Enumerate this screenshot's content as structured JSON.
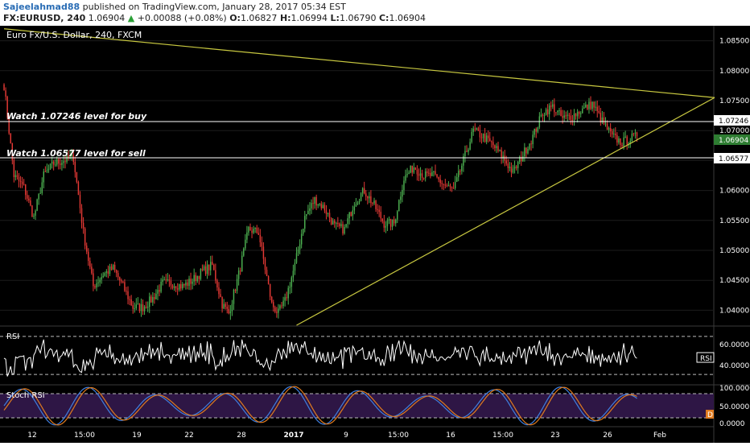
{
  "header": {
    "author": "Sajeelahmad88",
    "published_text": "published on TradingView.com, January 28, 2017 05:34 EST",
    "symbol": "FX:EURUSD, 240",
    "last": "1.06904",
    "change_arrow": "▲",
    "change": "+0.00088 (+0.08%)",
    "o_label": "O:",
    "o_value": "1.06827",
    "h_label": "H:",
    "h_value": "1.06994",
    "l_label": "L:",
    "l_value": "1.06790",
    "c_label": "C:",
    "c_value": "1.06904"
  },
  "chart": {
    "title": "Euro Fx/U.S. Dollar, 240, FXCM",
    "annotation_buy": "Watch 1.07246 level for buy",
    "annotation_sell": "Watch 1.06577 level for sell",
    "price_ticks": [
      "1.08500",
      "1.08000",
      "1.07500",
      "1.07000",
      "1.06500",
      "1.06000",
      "1.05500",
      "1.05000",
      "1.04500",
      "1.04000"
    ],
    "tag_buy": "1.07246",
    "tag_last": "1.06904",
    "tag_sell": "1.06577",
    "x_ticks": [
      "12",
      "15:00",
      "19",
      "22",
      "28",
      "2017",
      "9",
      "15:00",
      "16",
      "15:00",
      "23",
      "26",
      "Feb"
    ],
    "rsi_label": "RSI",
    "rsi_tag": "RSI",
    "rsi_ticks": [
      "60.0000",
      "40.0000"
    ],
    "stoch_label": "Stoch RSI",
    "stoch_ticks": [
      "100.0000",
      "50.0000",
      "0.0000"
    ],
    "stoch_tag": "D"
  },
  "colors": {
    "background": "#000000",
    "up_candle": "#4caf50",
    "down_candle": "#e53935",
    "trendline": "#c8c840",
    "level_line": "#ffffff",
    "rsi_line": "#ffffff",
    "stoch_band": "#2e1645",
    "stoch_k": "#3f7fe0",
    "stoch_d": "#e07b1f"
  },
  "chart_data": {
    "type": "candlestick",
    "title": "Euro Fx/U.S. Dollar, 240, FXCM",
    "ylim": [
      1.0375,
      1.0875
    ],
    "levels": [
      1.07246,
      1.06577
    ],
    "last_price": 1.06904,
    "close_path": [
      [
        0,
        1.0775
      ],
      [
        6,
        1.0625
      ],
      [
        12,
        1.0605
      ],
      [
        18,
        1.0555
      ],
      [
        24,
        1.0625
      ],
      [
        30,
        1.0645
      ],
      [
        36,
        1.065
      ],
      [
        42,
        1.0655
      ],
      [
        48,
        1.053
      ],
      [
        54,
        1.044
      ],
      [
        60,
        1.046
      ],
      [
        66,
        1.047
      ],
      [
        72,
        1.044
      ],
      [
        78,
        1.0405
      ],
      [
        84,
        1.0405
      ],
      [
        90,
        1.042
      ],
      [
        96,
        1.0445
      ],
      [
        102,
        1.0445
      ],
      [
        108,
        1.044
      ],
      [
        114,
        1.045
      ],
      [
        120,
        1.0465
      ],
      [
        126,
        1.0475
      ],
      [
        132,
        1.041
      ],
      [
        136,
        1.0395
      ],
      [
        142,
        1.046
      ],
      [
        148,
        1.0535
      ],
      [
        154,
        1.053
      ],
      [
        158,
        1.047
      ],
      [
        162,
        1.041
      ],
      [
        166,
        1.0395
      ],
      [
        170,
        1.0415
      ],
      [
        176,
        1.0475
      ],
      [
        182,
        1.0555
      ],
      [
        188,
        1.0585
      ],
      [
        194,
        1.057
      ],
      [
        200,
        1.054
      ],
      [
        206,
        1.0535
      ],
      [
        212,
        1.058
      ],
      [
        218,
        1.06
      ],
      [
        224,
        1.0575
      ],
      [
        230,
        1.0545
      ],
      [
        236,
        1.0545
      ],
      [
        242,
        1.062
      ],
      [
        248,
        1.064
      ],
      [
        254,
        1.0625
      ],
      [
        260,
        1.0625
      ],
      [
        266,
        1.061
      ],
      [
        272,
        1.06
      ],
      [
        278,
        1.065
      ],
      [
        284,
        1.07
      ],
      [
        290,
        1.069
      ],
      [
        296,
        1.0675
      ],
      [
        302,
        1.0655
      ],
      [
        308,
        1.063
      ],
      [
        314,
        1.066
      ],
      [
        320,
        1.069
      ],
      [
        326,
        1.073
      ],
      [
        332,
        1.074
      ],
      [
        338,
        1.072
      ],
      [
        344,
        1.0725
      ],
      [
        350,
        1.0735
      ],
      [
        356,
        1.0745
      ],
      [
        362,
        1.0715
      ],
      [
        368,
        1.069
      ],
      [
        374,
        1.068
      ],
      [
        380,
        1.0688
      ],
      [
        383,
        1.06904
      ]
    ],
    "trendlines": [
      {
        "from": [
          0,
          1.087
        ],
        "to": [
          430,
          1.0755
        ]
      },
      {
        "from": [
          177,
          1.0375
        ],
        "to": [
          430,
          1.0755
        ]
      }
    ],
    "rsi": {
      "ticks": [
        60,
        40
      ],
      "band": [
        30,
        70
      ]
    },
    "stoch_rsi": {
      "ticks": [
        100,
        50,
        0
      ],
      "band": [
        20,
        80
      ]
    }
  }
}
